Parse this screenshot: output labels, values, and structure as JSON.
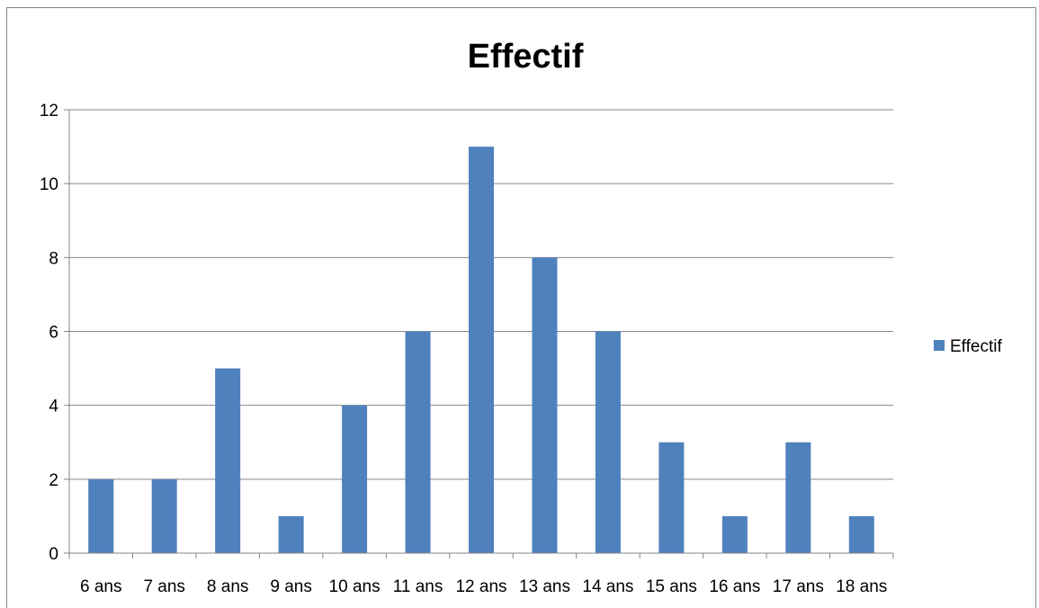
{
  "chart_data": {
    "type": "bar",
    "title": "Effectif",
    "xlabel": "",
    "ylabel": "",
    "categories": [
      "6 ans",
      "7 ans",
      "8 ans",
      "9 ans",
      "10 ans",
      "11 ans",
      "12 ans",
      "13 ans",
      "14 ans",
      "15 ans",
      "16 ans",
      "17 ans",
      "18 ans"
    ],
    "series": [
      {
        "name": "Effectif",
        "values": [
          2,
          2,
          5,
          1,
          4,
          6,
          11,
          8,
          6,
          3,
          1,
          3,
          1
        ]
      }
    ],
    "ylim": [
      0,
      12
    ],
    "yticks": [
      0,
      2,
      4,
      6,
      8,
      10,
      12
    ],
    "grid": true,
    "legend_position": "right",
    "colors": {
      "bar": "#4F81BD",
      "grid": "#868686",
      "axis": "#868686"
    }
  }
}
